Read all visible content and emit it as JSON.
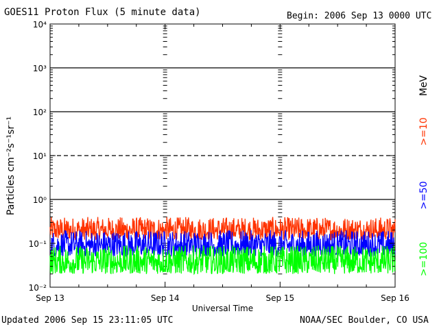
{
  "header": {
    "title": "GOES11 Proton Flux (5 minute data)",
    "begin": "Begin: 2006 Sep 13 0000 UTC"
  },
  "footer": {
    "updated": "Updated 2006 Sep 15 23:11:05 UTC",
    "credit": "NOAA/SEC Boulder, CO USA"
  },
  "chart_data": {
    "type": "line",
    "title": "GOES11 Proton Flux (5 minute data)",
    "xlabel": "Universal Time",
    "ylabel": "Particles cm⁻²s⁻¹sr⁻¹",
    "y_scale": "log",
    "ylim": [
      0.01,
      10000
    ],
    "xlim_days": [
      0,
      3
    ],
    "x_tick_labels": [
      "Sep 13",
      "Sep 14",
      "Sep 15",
      "Sep 16"
    ],
    "y_tick_labels": [
      "10⁻²",
      "10⁻¹",
      "10⁰",
      "10¹",
      "10²",
      "10³",
      "10⁴"
    ],
    "unit_label": "MeV",
    "reference_lines": [
      {
        "y": 1,
        "style": "solid"
      },
      {
        "y": 10,
        "style": "dashed"
      },
      {
        "y": 100,
        "style": "solid"
      },
      {
        "y": 1000,
        "style": "solid"
      }
    ],
    "series": [
      {
        "name": ">=10",
        "color": "#ff3300",
        "typical_range": [
          0.12,
          0.4
        ]
      },
      {
        "name": ">=50",
        "color": "#0000ff",
        "typical_range": [
          0.05,
          0.2
        ]
      },
      {
        "name": ">=100",
        "color": "#00ff00",
        "typical_range": [
          0.02,
          0.09
        ]
      }
    ],
    "legend_position": "right-vertical"
  }
}
